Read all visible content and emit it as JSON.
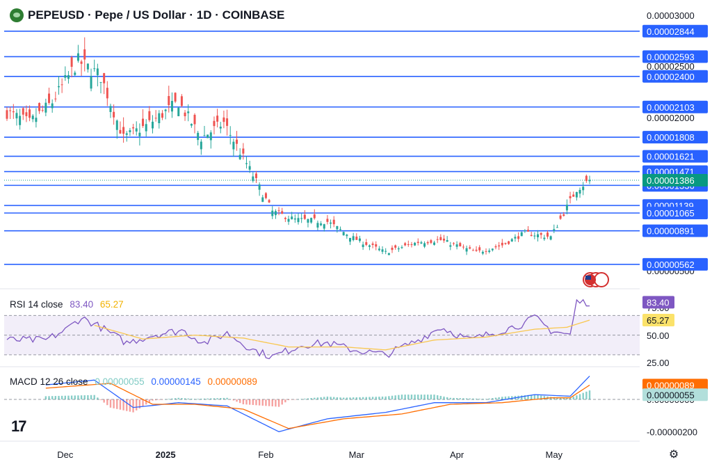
{
  "header": {
    "title": "PEPEUSD · Pepe / US Dollar · 1D · COINBASE",
    "logo_icon": "pepe-coin-icon"
  },
  "colors": {
    "up": "#26a69a",
    "down": "#ef5350",
    "level_line": "#2962ff",
    "rsi_line": "#7e57c2",
    "rsi_ma": "#f9c74f",
    "macd_line": "#2962ff",
    "signal_line": "#ff6d00"
  },
  "chart_data": [
    {
      "type": "candlestick",
      "title": "PEPEUSD · Pepe / US Dollar · 1D · COINBASE",
      "x_tick_labels": [
        "Dec",
        "2025",
        "Feb",
        "Mar",
        "Apr",
        "May"
      ],
      "y_axis_labels": [
        "0.00003000",
        "0.00002500",
        "0.00002000",
        "0.00000500"
      ],
      "ylim": [
        5e-06,
        3e-05
      ],
      "horizontal_levels": [
        "0.00002844",
        "0.00002593",
        "0.00002400",
        "0.00002103",
        "0.00001808",
        "0.00001621",
        "0.00001471",
        "0.00001336",
        "0.00001139",
        "0.00001065",
        "0.00000891",
        "0.00000562"
      ],
      "current_price": "0.00001386",
      "close_path": [
        {
          "date": "2024-11-13",
          "close": 2.05e-05
        },
        {
          "date": "2024-11-20",
          "close": 1.95e-05
        },
        {
          "date": "2024-11-27",
          "close": 2.15e-05
        },
        {
          "date": "2024-12-05",
          "close": 2.55e-05
        },
        {
          "date": "2024-12-12",
          "close": 2.4e-05
        },
        {
          "date": "2024-12-19",
          "close": 1.8e-05
        },
        {
          "date": "2024-12-26",
          "close": 1.92e-05
        },
        {
          "date": "2025-01-05",
          "close": 2.15e-05
        },
        {
          "date": "2025-01-12",
          "close": 1.8e-05
        },
        {
          "date": "2025-01-19",
          "close": 1.95e-05
        },
        {
          "date": "2025-01-26",
          "close": 1.55e-05
        },
        {
          "date": "2025-02-03",
          "close": 1.08e-05
        },
        {
          "date": "2025-02-10",
          "close": 1e-05
        },
        {
          "date": "2025-02-20",
          "close": 9.8e-06
        },
        {
          "date": "2025-02-28",
          "close": 8.2e-06
        },
        {
          "date": "2025-03-10",
          "close": 6.8e-06
        },
        {
          "date": "2025-03-20",
          "close": 7.8e-06
        },
        {
          "date": "2025-03-27",
          "close": 8e-06
        },
        {
          "date": "2025-04-07",
          "close": 6.8e-06
        },
        {
          "date": "2025-04-15",
          "close": 7.5e-06
        },
        {
          "date": "2025-04-22",
          "close": 8.7e-06
        },
        {
          "date": "2025-04-30",
          "close": 8.3e-06
        },
        {
          "date": "2025-05-08",
          "close": 1.3e-05
        },
        {
          "date": "2025-05-12",
          "close": 1.386e-05
        }
      ]
    },
    {
      "type": "line",
      "name_label": "RSI 14 close",
      "rsi_value": "83.40",
      "ma_value": "65.27",
      "y_axis_labels": [
        "75.00",
        "50.00",
        "25.00"
      ],
      "ylim": [
        20,
        95
      ],
      "rsi_path": [
        {
          "date": "2024-11-25",
          "value": 45
        },
        {
          "date": "2024-12-01",
          "value": 55
        },
        {
          "date": "2024-12-06",
          "value": 68
        },
        {
          "date": "2024-12-12",
          "value": 58
        },
        {
          "date": "2024-12-20",
          "value": 42
        },
        {
          "date": "2024-12-28",
          "value": 50
        },
        {
          "date": "2025-01-06",
          "value": 55
        },
        {
          "date": "2025-01-13",
          "value": 42
        },
        {
          "date": "2025-01-20",
          "value": 52
        },
        {
          "date": "2025-01-28",
          "value": 35
        },
        {
          "date": "2025-02-03",
          "value": 28
        },
        {
          "date": "2025-02-12",
          "value": 40
        },
        {
          "date": "2025-02-20",
          "value": 42
        },
        {
          "date": "2025-02-28",
          "value": 35
        },
        {
          "date": "2025-03-10",
          "value": 30
        },
        {
          "date": "2025-03-20",
          "value": 45
        },
        {
          "date": "2025-03-27",
          "value": 58
        },
        {
          "date": "2025-04-05",
          "value": 45
        },
        {
          "date": "2025-04-12",
          "value": 52
        },
        {
          "date": "2025-04-22",
          "value": 62
        },
        {
          "date": "2025-04-25",
          "value": 68
        },
        {
          "date": "2025-04-30",
          "value": 55
        },
        {
          "date": "2025-05-06",
          "value": 50
        },
        {
          "date": "2025-05-08",
          "value": 84
        },
        {
          "date": "2025-05-12",
          "value": 83.4
        }
      ],
      "ma_path": [
        {
          "date": "2024-12-10",
          "value": 60
        },
        {
          "date": "2024-12-25",
          "value": 46
        },
        {
          "date": "2025-01-10",
          "value": 50
        },
        {
          "date": "2025-01-25",
          "value": 47
        },
        {
          "date": "2025-02-08",
          "value": 38
        },
        {
          "date": "2025-02-25",
          "value": 38
        },
        {
          "date": "2025-03-10",
          "value": 35
        },
        {
          "date": "2025-03-25",
          "value": 45
        },
        {
          "date": "2025-04-10",
          "value": 48
        },
        {
          "date": "2025-04-25",
          "value": 56
        },
        {
          "date": "2025-05-05",
          "value": 58
        },
        {
          "date": "2025-05-12",
          "value": 65.27
        }
      ]
    },
    {
      "type": "line",
      "name_label": "MACD 12 26 close",
      "histogram_value": "0.00000055",
      "macd_value": "0.00000145",
      "signal_value": "0.00000089",
      "y_axis_labels": [
        "0.00000000",
        "-0.00000200"
      ],
      "zero_line_label": "0.00000000",
      "ylim": [
        -2.5e-06,
        1.9e-06
      ]
    }
  ],
  "price_axis": {
    "current_price_label": "0.00001386"
  },
  "time_axis": {
    "ticks": [
      "Dec",
      "2025",
      "Feb",
      "Mar",
      "Apr",
      "May"
    ]
  },
  "footer": {
    "logo_text": "17",
    "settings_icon": "gear-icon"
  }
}
